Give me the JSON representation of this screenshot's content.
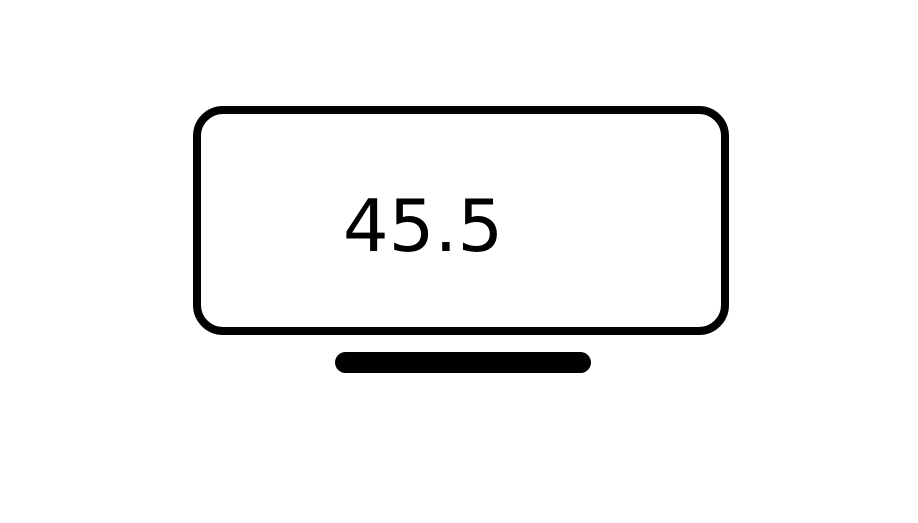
{
  "display": {
    "value": "45.5",
    "icon": "screen-display-icon"
  },
  "colors": {
    "stroke": "#000000",
    "background": "#ffffff"
  }
}
